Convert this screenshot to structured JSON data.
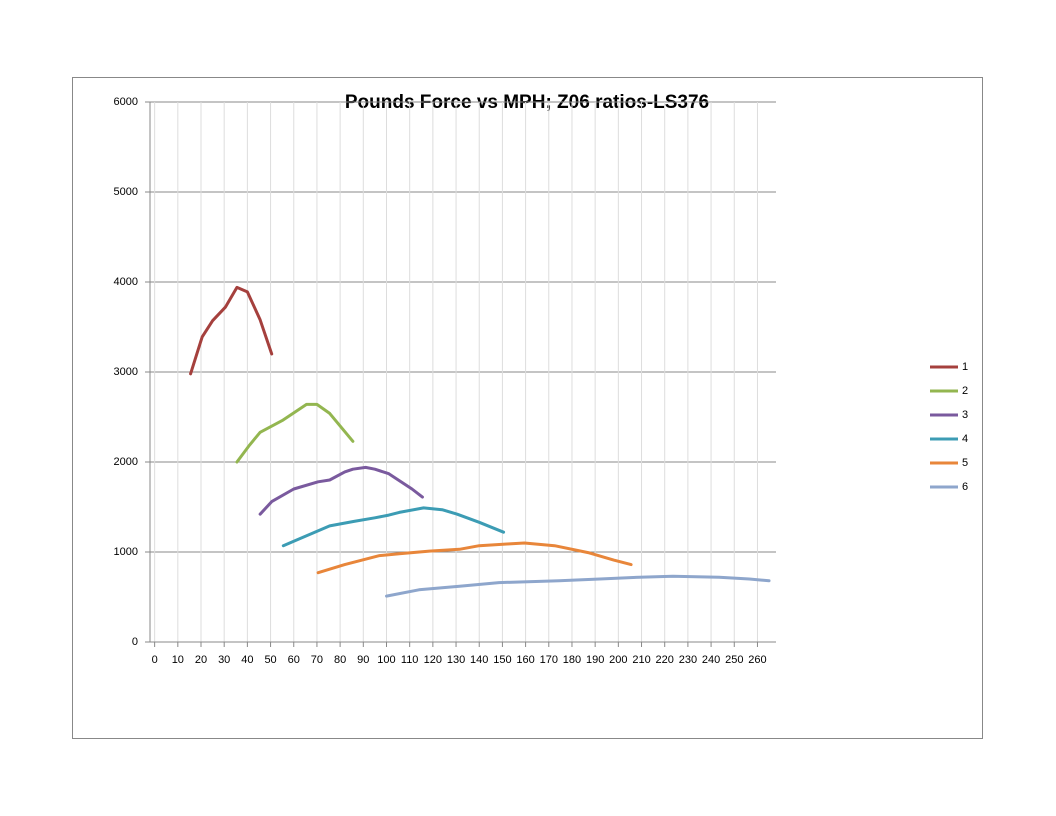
{
  "chart_data": {
    "type": "line",
    "title": "Pounds Force vs MPH; Z06 ratios-LS376",
    "xlim": [
      -2,
      268
    ],
    "xticks": [
      0,
      10,
      20,
      30,
      40,
      50,
      60,
      70,
      80,
      90,
      100,
      110,
      120,
      130,
      140,
      150,
      160,
      170,
      180,
      190,
      200,
      210,
      220,
      230,
      240,
      250,
      260
    ],
    "ylim": [
      0,
      6000
    ],
    "yticks": [
      0,
      1000,
      2000,
      3000,
      4000,
      5000,
      6000
    ],
    "grid": true,
    "legend": "right",
    "series": [
      {
        "name": "1",
        "color": "#a5403d",
        "x": [
          15.5,
          20.5,
          25,
          30.5,
          35.5,
          40,
          45.5,
          50.5
        ],
        "values": [
          2980,
          3390,
          3570,
          3720,
          3940,
          3890,
          3580,
          3200
        ]
      },
      {
        "name": "2",
        "color": "#93b650",
        "x": [
          35.5,
          41,
          45.5,
          55,
          65.5,
          70,
          75.5,
          85.5
        ],
        "values": [
          2000,
          2190,
          2330,
          2460,
          2640,
          2640,
          2540,
          2230
        ]
      },
      {
        "name": "3",
        "color": "#7a5a9e",
        "x": [
          45.5,
          50.5,
          60,
          70.5,
          75.5,
          82,
          85.5,
          91,
          95,
          101,
          111,
          115.5
        ],
        "values": [
          1420,
          1560,
          1700,
          1780,
          1800,
          1890,
          1920,
          1940,
          1920,
          1870,
          1700,
          1610
        ]
      },
      {
        "name": "4",
        "color": "#3c9cb4",
        "x": [
          55.5,
          61,
          75.5,
          86,
          95,
          101,
          105.5,
          116,
          124,
          130.5,
          140,
          150.5
        ],
        "values": [
          1070,
          1130,
          1290,
          1340,
          1380,
          1410,
          1440,
          1490,
          1470,
          1420,
          1330,
          1220
        ]
      },
      {
        "name": "5",
        "color": "#e8863a",
        "x": [
          70.5,
          82,
          97,
          105.5,
          118.5,
          131.5,
          140,
          153,
          159.5,
          172.5,
          187.5,
          198,
          205.5
        ],
        "values": [
          770,
          860,
          960,
          980,
          1010,
          1030,
          1070,
          1090,
          1100,
          1070,
          990,
          910,
          860
        ]
      },
      {
        "name": "6",
        "color": "#8ea6cc",
        "x": [
          100,
          114,
          131.5,
          148.5,
          174.5,
          192,
          209,
          223.5,
          243.5,
          256.5,
          265
        ],
        "values": [
          510,
          580,
          620,
          660,
          680,
          700,
          720,
          730,
          720,
          700,
          680
        ]
      }
    ]
  }
}
